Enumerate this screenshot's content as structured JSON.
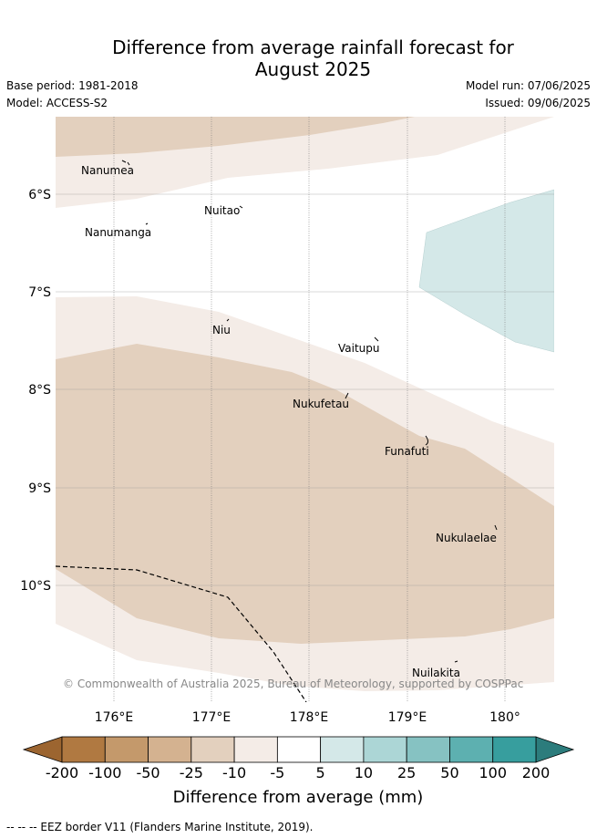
{
  "header": {
    "title_line1": "Difference from average rainfall forecast for",
    "title_line2": "August 2025",
    "base_period": "Base period: 1981-2018",
    "model": "Model: ACCESS-S2",
    "model_run": "Model run: 07/06/2025",
    "issued": "Issued: 09/06/2025"
  },
  "map": {
    "latitude_labels": [
      "6°S",
      "7°S",
      "8°S",
      "9°S",
      "10°S"
    ],
    "longitude_labels": [
      "176°E",
      "177°E",
      "178°E",
      "179°E",
      "180°"
    ],
    "places": [
      "Nanumea",
      "Nuitao",
      "Nanumanga",
      "Niu",
      "Vaitupu",
      "Nukufetau",
      "Funafuti",
      "Nukulaelae",
      "Nuilakita"
    ],
    "attribution": "© Commonwealth of Australia 2025, Bureau of Meteorology, supported by COSPPac"
  },
  "colorbar": {
    "tick_labels": [
      "-200",
      "-100",
      "-50",
      "-25",
      "-10",
      "-5",
      "5",
      "10",
      "25",
      "50",
      "100",
      "200"
    ],
    "colors": [
      "#b07941",
      "#c4996b",
      "#d4b290",
      "#e3d0be",
      "#f4ece7",
      "#ffffff",
      "#d4e8e8",
      "#acd6d6",
      "#86c2c2",
      "#5db0b0",
      "#379e9e"
    ],
    "under_color": "#9c6530",
    "over_color": "#2c7c7c",
    "label": "Difference from average (mm)"
  },
  "legend_footer": "--  --  -- EEZ border V11 (Flanders Marine Institute, 2019)."
}
